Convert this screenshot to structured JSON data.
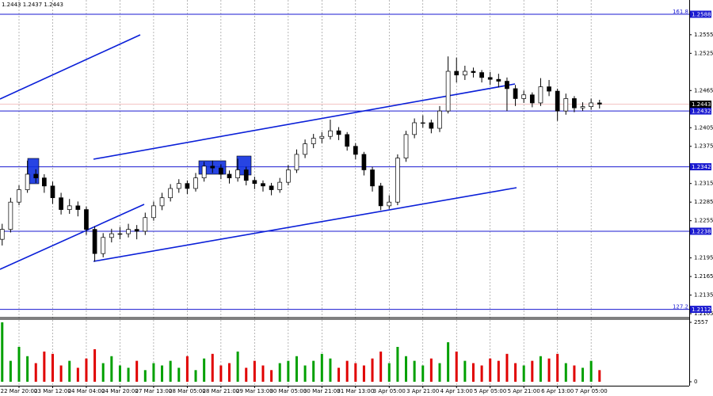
{
  "chart_data": [
    {
      "type": "candlestick",
      "title": "1.2443 1.2437 1.2443",
      "categories": [
        null,
        null,
        "22 Mar 20:00",
        null,
        null,
        null,
        "23 Mar 12:00",
        null,
        null,
        null,
        "24 Mar 04:00",
        null,
        null,
        null,
        "24 Mar 20:00",
        null,
        null,
        null,
        "27 Mar 13:00",
        null,
        null,
        null,
        "28 Mar 05:00",
        null,
        null,
        null,
        "28 Mar 21:00",
        null,
        null,
        null,
        "29 Mar 13:00",
        null,
        null,
        null,
        "30 Mar 05:00",
        null,
        null,
        null,
        "30 Mar 21:00",
        null,
        null,
        null,
        "31 Mar 13:00",
        null,
        null,
        null,
        "3 Apr 05:00",
        null,
        null,
        null,
        "3 Apr 21:00",
        null,
        null,
        null,
        "4 Apr 13:00",
        null,
        null,
        null,
        "5 Apr 05:00",
        null,
        null,
        null,
        "5 Apr 21:00",
        null,
        null,
        null,
        "6 Apr 13:00",
        null,
        null,
        null,
        "7 Apr 05:00",
        null
      ],
      "open": [
        1.2225,
        1.2241,
        1.2285,
        1.2305,
        1.233,
        1.2324,
        1.2311,
        1.2292,
        1.2273,
        1.2279,
        1.2273,
        1.2241,
        1.2202,
        1.2228,
        1.2234,
        1.2234,
        1.2241,
        1.2238,
        1.226,
        1.2279,
        1.2292,
        1.2307,
        1.2315,
        1.2307,
        1.2324,
        1.2343,
        1.234,
        1.233,
        1.2324,
        1.2337,
        1.232,
        1.2315,
        1.2311,
        1.2305,
        1.2317,
        1.2337,
        1.2362,
        1.2379,
        1.2388,
        1.2391,
        1.24,
        1.2394,
        1.2375,
        1.2362,
        1.2337,
        1.2311,
        1.2279,
        1.2285,
        1.2356,
        1.2394,
        1.2413,
        1.2413,
        1.2404,
        1.2432,
        1.2496,
        1.249,
        1.2496,
        1.2494,
        1.2486,
        1.2483,
        1.248,
        1.2468,
        1.2452,
        1.2458,
        1.2445,
        1.2471,
        1.2464,
        1.2432,
        1.2452,
        1.2437,
        1.2439,
        1.2445
      ],
      "high": [
        1.225,
        1.2292,
        1.2312,
        1.2352,
        1.2338,
        1.233,
        1.2318,
        1.23,
        1.229,
        1.2286,
        1.2278,
        1.2246,
        1.2235,
        1.2242,
        1.2245,
        1.225,
        1.2248,
        1.2268,
        1.2286,
        1.23,
        1.2314,
        1.2322,
        1.232,
        1.2332,
        1.235,
        1.2352,
        1.2346,
        1.2336,
        1.2355,
        1.2342,
        1.2326,
        1.232,
        1.2316,
        1.2324,
        1.2345,
        1.237,
        1.2386,
        1.2395,
        1.2398,
        1.2418,
        1.2406,
        1.2398,
        1.238,
        1.2366,
        1.2342,
        1.2316,
        1.2296,
        1.2362,
        1.24,
        1.242,
        1.2425,
        1.2418,
        1.244,
        1.252,
        1.2518,
        1.2505,
        1.2502,
        1.2498,
        1.2495,
        1.2492,
        1.2486,
        1.2474,
        1.2465,
        1.2462,
        1.2485,
        1.2482,
        1.2468,
        1.246,
        1.2456,
        1.2446,
        1.2452,
        1.245
      ],
      "low": [
        1.2215,
        1.2236,
        1.228,
        1.23,
        1.2316,
        1.23,
        1.2282,
        1.2265,
        1.2266,
        1.2262,
        1.2232,
        1.2189,
        1.2196,
        1.222,
        1.2225,
        1.2228,
        1.2225,
        1.2232,
        1.2255,
        1.2272,
        1.2286,
        1.23,
        1.2298,
        1.2302,
        1.2318,
        1.2332,
        1.2322,
        1.2315,
        1.2318,
        1.2312,
        1.2306,
        1.2302,
        1.2296,
        1.23,
        1.2312,
        1.2332,
        1.2356,
        1.2372,
        1.238,
        1.2386,
        1.2385,
        1.2368,
        1.2354,
        1.2328,
        1.2302,
        1.2272,
        1.2274,
        1.228,
        1.235,
        1.2388,
        1.2405,
        1.2396,
        1.2398,
        1.2428,
        1.2478,
        1.2482,
        1.2486,
        1.2478,
        1.2474,
        1.247,
        1.2432,
        1.244,
        1.2445,
        1.2438,
        1.244,
        1.2456,
        1.2416,
        1.2426,
        1.243,
        1.2432,
        1.2434,
        1.2436
      ],
      "close": [
        1.2241,
        1.2285,
        1.2305,
        1.233,
        1.2324,
        1.2311,
        1.2292,
        1.2273,
        1.2279,
        1.2273,
        1.2241,
        1.2202,
        1.2228,
        1.2234,
        1.2234,
        1.2241,
        1.2238,
        1.226,
        1.2279,
        1.2292,
        1.2307,
        1.2315,
        1.2307,
        1.2324,
        1.2343,
        1.234,
        1.233,
        1.2324,
        1.2337,
        1.232,
        1.2315,
        1.2311,
        1.2305,
        1.2317,
        1.2337,
        1.2362,
        1.2379,
        1.2388,
        1.2391,
        1.24,
        1.2394,
        1.2375,
        1.2362,
        1.2337,
        1.2311,
        1.2279,
        1.2285,
        1.2356,
        1.2394,
        1.2413,
        1.2413,
        1.2404,
        1.2432,
        1.2496,
        1.249,
        1.2496,
        1.2494,
        1.2486,
        1.2483,
        1.248,
        1.2468,
        1.2452,
        1.2458,
        1.2445,
        1.2471,
        1.2464,
        1.2432,
        1.2452,
        1.2437,
        1.2439,
        1.2445,
        1.2443
      ],
      "ylim": [
        1.21,
        1.2611
      ],
      "yticks": [
        1.2105,
        1.2135,
        1.2165,
        1.2195,
        1.2255,
        1.2285,
        1.2315,
        1.2375,
        1.2405,
        1.2465,
        1.2525,
        1.2555
      ],
      "levels": [
        {
          "value": 1.2588,
          "tag": "161.8"
        },
        {
          "value": 1.2432
        },
        {
          "value": 1.2342
        },
        {
          "value": 1.2238
        },
        {
          "value": 1.2112,
          "tag": "127.2"
        }
      ],
      "last": 1.2443,
      "grid": true
    },
    {
      "type": "bar",
      "values": [
        2557,
        900,
        1500,
        1100,
        800,
        1300,
        1200,
        700,
        900,
        600,
        1000,
        1400,
        800,
        1100,
        700,
        600,
        900,
        500,
        800,
        700,
        900,
        600,
        1100,
        500,
        1000,
        1200,
        700,
        800,
        1300,
        600,
        900,
        700,
        500,
        800,
        900,
        1100,
        700,
        900,
        1200,
        1000,
        600,
        900,
        800,
        700,
        1000,
        1300,
        800,
        1500,
        1100,
        900,
        700,
        1000,
        800,
        1700,
        1300,
        900,
        800,
        700,
        1000,
        900,
        1200,
        800,
        700,
        900,
        1100,
        1000,
        1200,
        800,
        700,
        600,
        900,
        500
      ],
      "colors": {
        "up": "#00a000",
        "down": "#e00000"
      },
      "ylim": [
        0,
        2557
      ],
      "yticks": [
        0,
        2557
      ]
    }
  ]
}
